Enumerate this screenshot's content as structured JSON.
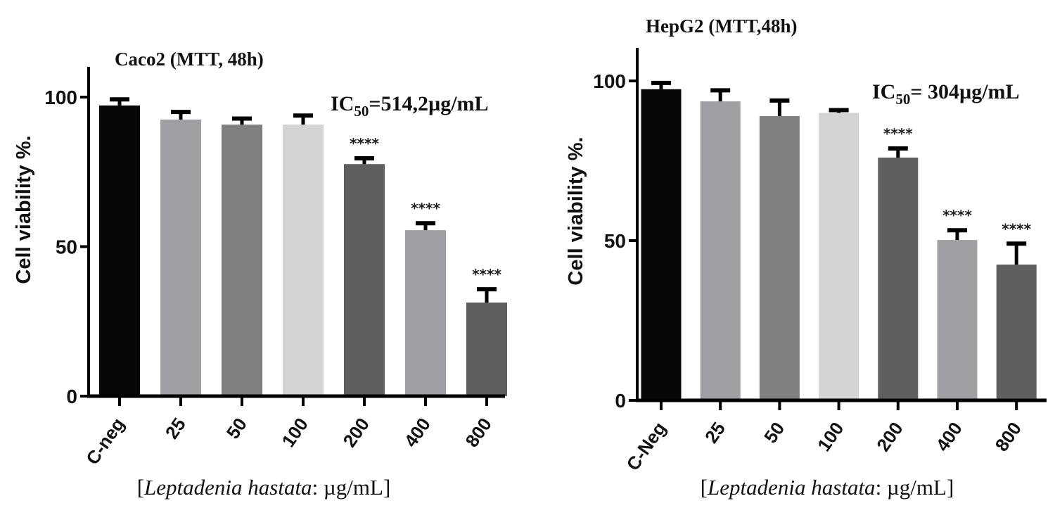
{
  "chart_data": [
    {
      "type": "bar",
      "title": "Caco2 (MTT, 48h)",
      "annotation": {
        "prefix": "IC",
        "sub": "50",
        "suffix": "=514,2µg/mL"
      },
      "xlabel": {
        "open": "[",
        "italic": "Leptadenia hastata",
        "rest": ": µg/mL]"
      },
      "ylabel": "Cell viability %.",
      "ylim": [
        0,
        110
      ],
      "yticks": [
        0,
        50,
        100
      ],
      "grid": false,
      "categories": [
        "C-neg",
        "25",
        "50",
        "100",
        "200",
        "400",
        "800"
      ],
      "values": [
        97.2,
        92.5,
        90.8,
        90.8,
        77.6,
        55.5,
        31.3
      ],
      "errors": [
        2.5,
        3.0,
        2.5,
        3.5,
        2.4,
        2.8,
        4.9
      ],
      "significance": [
        "",
        "",
        "",
        "",
        "****",
        "****",
        "****"
      ],
      "colors": [
        "#060808",
        "#9ea0a3",
        "#7f8180",
        "#d4d4d4",
        "#5f5f61",
        "#9ea0a3",
        "#5f5f61"
      ]
    },
    {
      "type": "bar",
      "title": "HepG2 (MTT,48h)",
      "annotation": {
        "prefix": "IC",
        "sub": "50",
        "suffix": "= 304µg/mL"
      },
      "xlabel": {
        "open": "[",
        "italic": "Leptadenia hastata",
        "rest": ": µg/mL]"
      },
      "ylabel": "Cell viability %.",
      "ylim": [
        0,
        110
      ],
      "yticks": [
        0,
        50,
        100
      ],
      "grid": false,
      "categories": [
        "C-Neg",
        "25",
        "50",
        "100",
        "200",
        "400",
        "800"
      ],
      "values": [
        97.4,
        93.6,
        89.0,
        90.0,
        76.0,
        50.2,
        42.5
      ],
      "errors": [
        2.4,
        3.9,
        5.3,
        1.3,
        3.3,
        3.5,
        7.0
      ],
      "significance": [
        "",
        "",
        "",
        "",
        "****",
        "****",
        "****"
      ],
      "colors": [
        "#060808",
        "#9ea0a3",
        "#7f8180",
        "#d4d4d4",
        "#5f5f61",
        "#9ea0a3",
        "#5f5f61"
      ]
    }
  ]
}
